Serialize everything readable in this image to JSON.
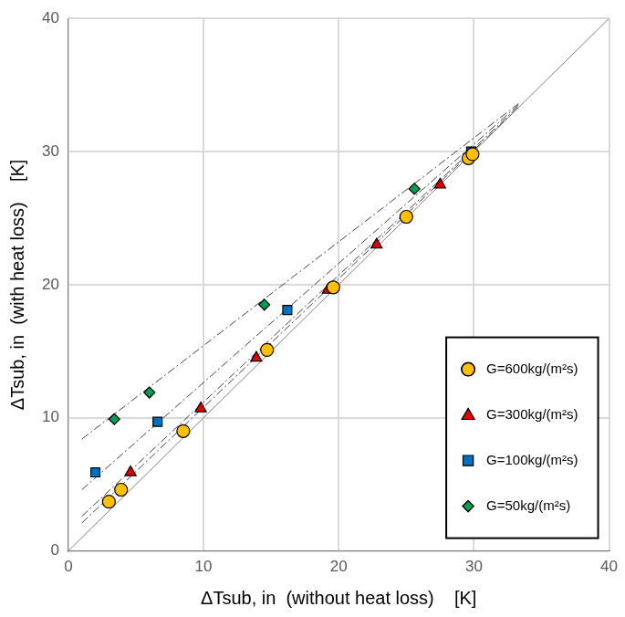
{
  "chart_data": {
    "type": "scatter",
    "x_label": "ΔTsub, in  (without heat loss)    [K]",
    "y_label": "ΔTsub, in  (with heat loss)    [K]",
    "xlim": [
      0,
      40
    ],
    "ylim": [
      0,
      40
    ],
    "xticks": [
      0,
      10,
      20,
      30,
      40
    ],
    "yticks": [
      0,
      10,
      20,
      30,
      40
    ],
    "grid": true,
    "legend": "lower right",
    "series": [
      {
        "name": "G=600kg/(m²s)",
        "color": "#ffc000",
        "marker": "circle",
        "x": [
          3.0,
          3.9,
          8.5,
          14.7,
          19.6,
          25.0,
          29.6,
          29.9
        ],
        "values": [
          3.7,
          4.6,
          9.0,
          15.1,
          19.8,
          25.1,
          29.5,
          29.8
        ]
      },
      {
        "name": "G=300kg/(m²s)",
        "color": "#e00000",
        "marker": "triangle",
        "x": [
          4.6,
          9.8,
          13.9,
          19.2,
          22.8,
          27.5
        ],
        "values": [
          5.9,
          10.7,
          14.5,
          19.6,
          23.0,
          27.5
        ]
      },
      {
        "name": "G=100kg/(m²s)",
        "color": "#0070c0",
        "marker": "square",
        "x": [
          2.0,
          6.6,
          16.2,
          29.8
        ],
        "values": [
          5.9,
          9.7,
          18.1,
          30.0
        ]
      },
      {
        "name": "G=50kg/(m²s)",
        "color": "#00a050",
        "marker": "diamond",
        "x": [
          3.4,
          6.0,
          14.5,
          25.6
        ],
        "values": [
          9.9,
          11.9,
          18.5,
          27.2
        ]
      }
    ],
    "lines": [
      {
        "x": [
          0,
          40
        ],
        "values": [
          0,
          40
        ],
        "color": "#808080",
        "line_style": "solid"
      },
      {
        "x": [
          1,
          33.3
        ],
        "values": [
          8.4,
          33.6
        ],
        "color": "#404040",
        "line_style": "dashdot"
      },
      {
        "x": [
          1,
          33.3
        ],
        "values": [
          4.6,
          33.5
        ],
        "color": "#404040",
        "line_style": "dashdot"
      },
      {
        "x": [
          1,
          33.3
        ],
        "values": [
          2.6,
          33.4
        ],
        "color": "#404040",
        "line_style": "dashdot"
      },
      {
        "x": [
          1,
          33.3
        ],
        "values": [
          2.1,
          33.3
        ],
        "color": "#404040",
        "line_style": "dashdot"
      }
    ]
  }
}
